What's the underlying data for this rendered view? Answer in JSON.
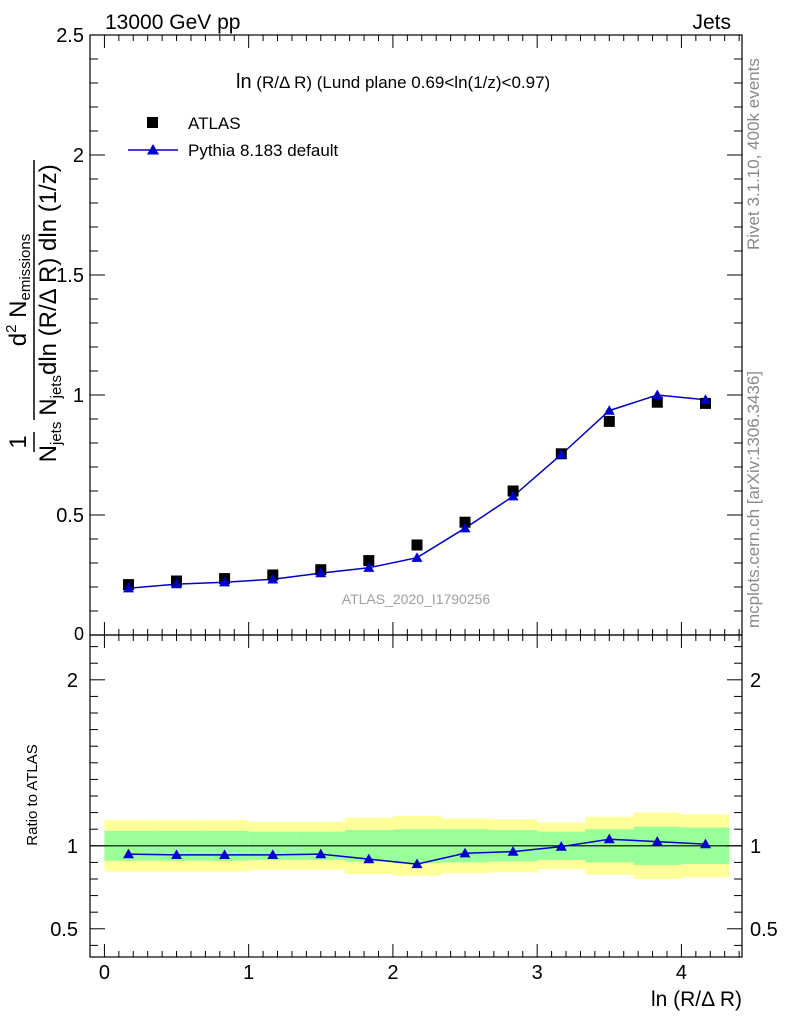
{
  "header": {
    "left": "13000 GeV pp",
    "right": "Jets"
  },
  "side_labels": {
    "rivet": "Rivet 3.1.10,  400k events",
    "mcplots": "mcplots.cern.ch [arXiv:1306.3436]"
  },
  "watermark": "ATLAS_2020_I1790256",
  "colors": {
    "mc": "#0000cc",
    "data": "#000000",
    "band_inner": "#99ff99",
    "band_outer": "#ffff99",
    "side_text": "#8a8a8a",
    "watermark": "#a0a0a0"
  },
  "chart_data": [
    {
      "panel": "main",
      "type": "scatter",
      "title": "ln(R/Δ R) (Lund plane 0.69<ln(1/z)<0.97)",
      "ylabel_parts": {
        "prefix": "1",
        "njets": "N",
        "jets_sub": "jets",
        "denom_rest": "dln (R/Δ R) dln (1/z)",
        "num_d": "d",
        "num_sup": "2",
        "num_N": "N",
        "num_sub": "emissions"
      },
      "xlim": [
        -0.1,
        4.42
      ],
      "ylim": [
        0,
        2.5
      ],
      "yticks": [
        0,
        0.5,
        1,
        1.5,
        2,
        2.5
      ],
      "ytick_labels": [
        "0",
        "0.5",
        "1",
        "1.5",
        "2",
        "2.5"
      ],
      "legend": [
        {
          "name": "ATLAS",
          "marker": "square"
        },
        {
          "name": "Pythia 8.183 default",
          "marker": "triangle"
        }
      ],
      "x": [
        0.167,
        0.5,
        0.833,
        1.167,
        1.5,
        1.833,
        2.167,
        2.5,
        2.833,
        3.167,
        3.5,
        3.833,
        4.167
      ],
      "series": [
        {
          "name": "ATLAS",
          "values": [
            0.21,
            0.225,
            0.235,
            0.25,
            0.272,
            0.31,
            0.375,
            0.47,
            0.6,
            0.755,
            0.89,
            0.97,
            0.965
          ]
        },
        {
          "name": "Pythia 8.183 default",
          "values": [
            0.195,
            0.212,
            0.22,
            0.232,
            0.258,
            0.28,
            0.322,
            0.445,
            0.578,
            0.752,
            0.935,
            1.0,
            0.98
          ]
        }
      ]
    },
    {
      "panel": "ratio",
      "type": "line",
      "ylabel": "Ratio to ATLAS",
      "xlabel": "ln (R/Δ R)",
      "xlim": [
        -0.1,
        4.42
      ],
      "ylim": [
        0.33,
        2.27
      ],
      "xticks": [
        0,
        1,
        2,
        3,
        4
      ],
      "xtick_labels": [
        "0",
        "1",
        "2",
        "3",
        "4"
      ],
      "yticks": [
        0.5,
        1,
        2
      ],
      "ytick_labels": [
        "0.5",
        "1",
        "2"
      ],
      "bin_edges": [
        0,
        0.333,
        0.667,
        1.0,
        1.333,
        1.667,
        2.0,
        2.333,
        2.667,
        3.0,
        3.333,
        3.667,
        4.0,
        4.333
      ],
      "band_inner_up": [
        1.09,
        1.09,
        1.09,
        1.085,
        1.085,
        1.095,
        1.1,
        1.1,
        1.095,
        1.085,
        1.1,
        1.115,
        1.11
      ],
      "band_inner_dn": [
        0.91,
        0.91,
        0.91,
        0.915,
        0.915,
        0.905,
        0.895,
        0.9,
        0.905,
        0.915,
        0.9,
        0.885,
        0.89
      ],
      "band_outer_up": [
        1.155,
        1.155,
        1.155,
        1.145,
        1.145,
        1.17,
        1.18,
        1.165,
        1.16,
        1.14,
        1.175,
        1.2,
        1.19
      ],
      "band_outer_dn": [
        0.845,
        0.845,
        0.845,
        0.855,
        0.855,
        0.83,
        0.82,
        0.835,
        0.84,
        0.86,
        0.825,
        0.8,
        0.81
      ],
      "x": [
        0.167,
        0.5,
        0.833,
        1.167,
        1.5,
        1.833,
        2.167,
        2.5,
        2.833,
        3.167,
        3.5,
        3.833,
        4.167
      ],
      "series": [
        {
          "name": "Pythia 8.183 default",
          "values": [
            0.95,
            0.945,
            0.945,
            0.945,
            0.95,
            0.92,
            0.89,
            0.955,
            0.965,
            0.995,
            1.04,
            1.025,
            1.01
          ]
        }
      ]
    }
  ]
}
